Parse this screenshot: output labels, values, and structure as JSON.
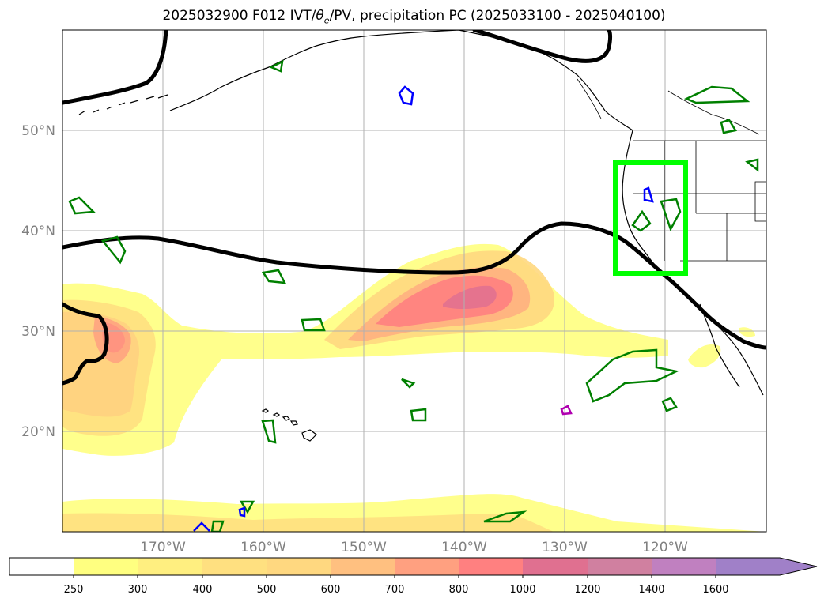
{
  "title": "2025032900 F012 IVT/θe/PV, precipitation PC (2025033100 - 2025040100)",
  "title_parts": {
    "prefix": "2025032900 F012 IVT/",
    "theta": "θ",
    "theta_sub": "e",
    "suffix": "/PV, precipitation PC (2025033100 - 2025040100)"
  },
  "map": {
    "lon_range": [
      -180,
      -110
    ],
    "lat_range": [
      10,
      60
    ],
    "lat_ticks": [
      "50°N",
      "40°N",
      "30°N",
      "20°N"
    ],
    "lon_ticks": [
      "170°W",
      "160°W",
      "150°W",
      "140°W",
      "130°W",
      "120°W"
    ],
    "grid": true,
    "highlight_box_color": "#00ff00",
    "theta_e_contour_color": "#000000",
    "pv_contour_color": "#008000",
    "precip_contour_color": "#0000ff"
  },
  "colorbar": {
    "levels": [
      "250",
      "300",
      "400",
      "500",
      "600",
      "700",
      "800",
      "1000",
      "1200",
      "1400",
      "1600"
    ],
    "colors": [
      "#ffffff",
      "#ffff80",
      "#ffef80",
      "#ffe080",
      "#ffd880",
      "#ffc080",
      "#ffa080",
      "#ff8080",
      "#e07090",
      "#d080a0",
      "#c080c0",
      "#a080c8"
    ],
    "extend": "max"
  }
}
